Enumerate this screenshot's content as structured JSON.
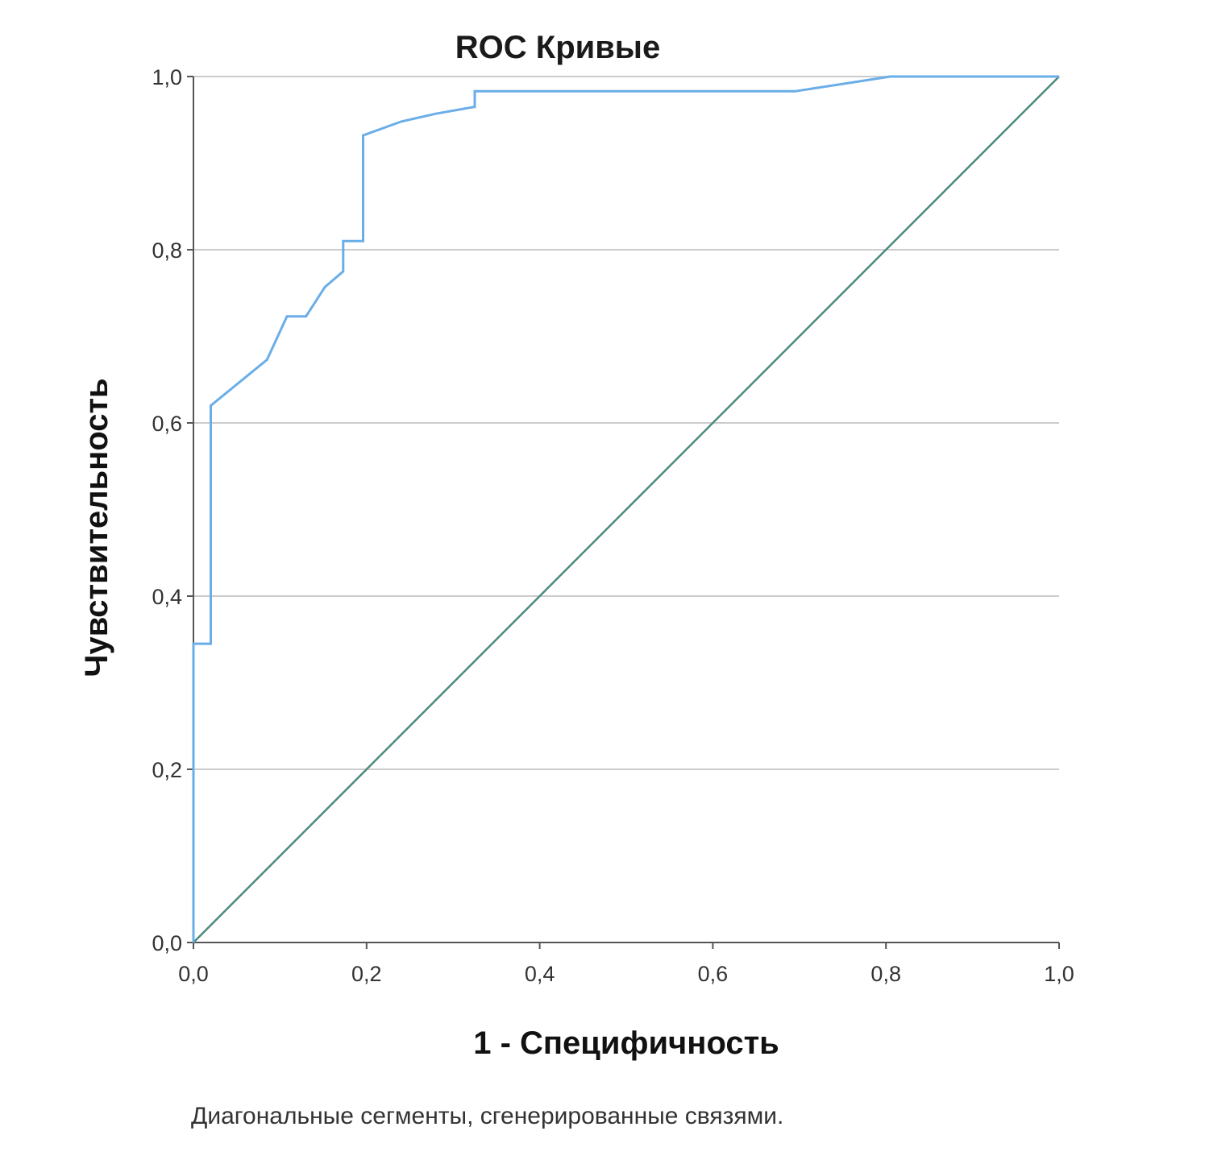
{
  "chart_data": {
    "type": "line",
    "title": "ROC Кривые",
    "xlabel": "1 - Специфичность",
    "ylabel": "Чувствительность",
    "footnote": "Диагональные сегменты, сгенерированные связями.",
    "xlim": [
      0,
      1
    ],
    "ylim": [
      0,
      1
    ],
    "x_ticks": [
      "0,0",
      "0,2",
      "0,4",
      "0,6",
      "0,8",
      "1,0"
    ],
    "y_ticks": [
      "0,0",
      "0,2",
      "0,4",
      "0,6",
      "0,8",
      "1,0"
    ],
    "grid": "horizontal",
    "colors": {
      "roc": "#6aaee8",
      "reference": "#4a8a7c",
      "grid": "#cccccc",
      "axis": "#555555"
    },
    "series": [
      {
        "x": [
          0,
          0,
          0.02,
          0.02,
          0.02,
          0.085,
          0.108,
          0.13,
          0.152,
          0.173,
          0.173,
          0.196,
          0.196,
          0.24,
          0.28,
          0.325,
          0.325,
          0.42,
          0.6,
          0.695,
          0.805,
          1.0
        ],
        "y": [
          0,
          0.345,
          0.345,
          0.36,
          0.62,
          0.673,
          0.723,
          0.723,
          0.757,
          0.775,
          0.81,
          0.81,
          0.932,
          0.948,
          0.957,
          0.965,
          0.983,
          0.983,
          0.983,
          0.983,
          1.0,
          1.0
        ]
      },
      {
        "x": [
          0,
          1
        ],
        "y": [
          0,
          1
        ]
      }
    ]
  }
}
